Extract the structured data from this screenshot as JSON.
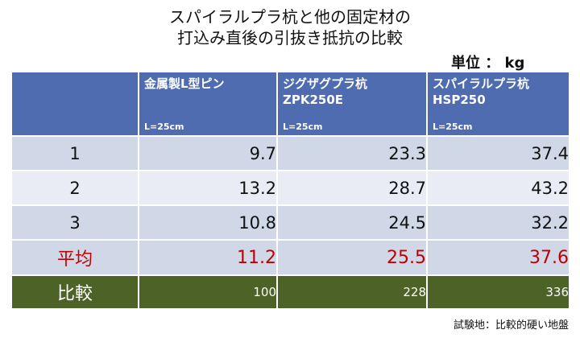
{
  "title_line1": "スパイラルプラ杭と他の固定材の",
  "title_line2": "打込み直後の引抜き抵抗の比較",
  "unit": "単位 ： kg",
  "columns": [
    {
      "name": "金属製L型ピン",
      "sub": "L=25cm"
    },
    {
      "name": "ジグザグプラ杭",
      "name2": "ZPK250E",
      "sub": "L=25cm"
    },
    {
      "name": "スパイラルプラ杭",
      "name2": "HSP250",
      "sub": "L=25cm"
    }
  ],
  "rows": [
    {
      "label": "1",
      "values": [
        "9.7",
        "23.3",
        "37.4"
      ]
    },
    {
      "label": "2",
      "values": [
        "13.2",
        "28.7",
        "43.2"
      ]
    },
    {
      "label": "3",
      "values": [
        "10.8",
        "24.5",
        "32.2"
      ]
    }
  ],
  "average": {
    "label": "平均",
    "values": [
      "11.2",
      "25.5",
      "37.6"
    ]
  },
  "comparison": {
    "label": "比較",
    "values": [
      "100",
      "228",
      "336"
    ]
  },
  "note": "試験地：比較的硬い地盤",
  "colors": {
    "header_bg": "#4f6cb0",
    "row_dark": "#d0d8e8",
    "row_light": "#e9ecf5",
    "average_text": "#c00000",
    "comparison_bg": "#4d6227"
  }
}
